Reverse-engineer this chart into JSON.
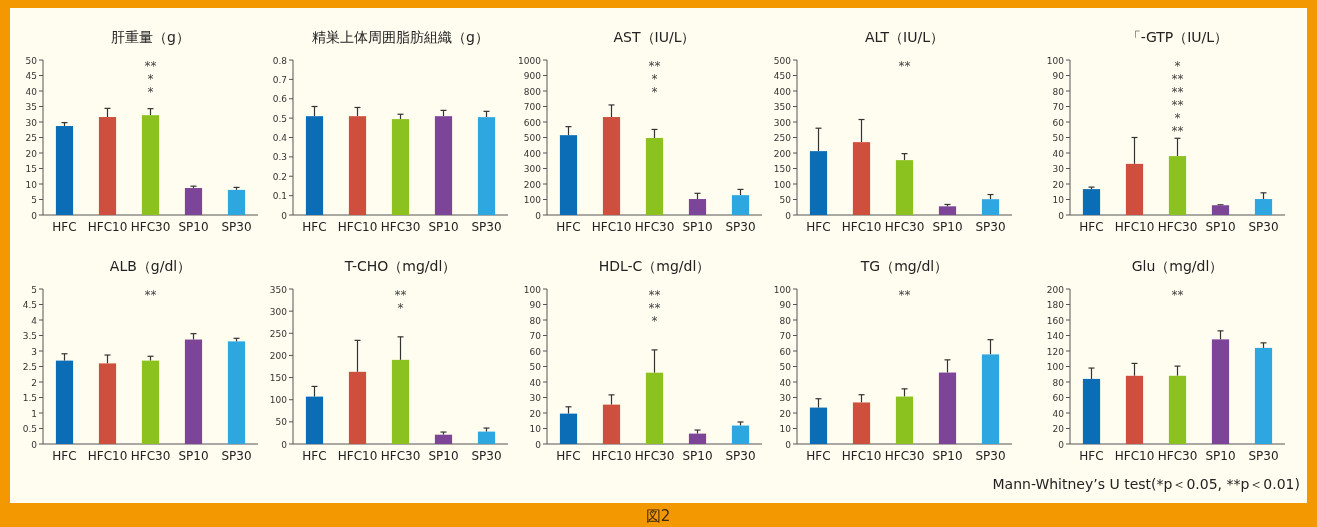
{
  "chart_data": [
    {
      "type": "bar",
      "title": "肝重量（g）",
      "categories": [
        "HFC",
        "HFC10",
        "HFC30",
        "SP10",
        "SP30"
      ],
      "values": [
        28.7,
        31.6,
        32.2,
        8.7,
        8.1
      ],
      "colors": [
        "#0a6db5",
        "#cf4f3e",
        "#8cc21f",
        "#7c4597",
        "#2ea6e0"
      ],
      "errors": [
        [
          28.7,
          29.8
        ],
        [
          31.6,
          34.4
        ],
        [
          32.2,
          34.3
        ],
        [
          8.7,
          9.3
        ],
        [
          8.1,
          8.9
        ]
      ],
      "ylim": [
        0,
        50
      ],
      "yticks": [
        0,
        5,
        10,
        15,
        20,
        25,
        30,
        35,
        40,
        45,
        50
      ],
      "annotations": [
        "**",
        "*",
        "*"
      ]
    },
    {
      "type": "bar",
      "title": "精巣上体周囲脂肪組織（g）",
      "categories": [
        "HFC",
        "HFC10",
        "HFC30",
        "SP10",
        "SP30"
      ],
      "values": [
        0.51,
        0.51,
        0.495,
        0.51,
        0.505
      ],
      "colors": [
        "#0a6db5",
        "#cf4f3e",
        "#8cc21f",
        "#7c4597",
        "#2ea6e0"
      ],
      "errors": [
        [
          0.51,
          0.56
        ],
        [
          0.51,
          0.555
        ],
        [
          0.495,
          0.52
        ],
        [
          0.51,
          0.54
        ],
        [
          0.505,
          0.535
        ]
      ],
      "ylim": [
        0,
        0.8
      ],
      "yticks": [
        0,
        0.1,
        0.2,
        0.3,
        0.4,
        0.5,
        0.6,
        0.7,
        0.8
      ]
    },
    {
      "type": "bar",
      "title": "AST（IU/L）",
      "categories": [
        "HFC",
        "HFC10",
        "HFC30",
        "SP10",
        "SP30"
      ],
      "values": [
        515,
        632,
        497,
        103,
        128
      ],
      "colors": [
        "#0a6db5",
        "#cf4f3e",
        "#8cc21f",
        "#7c4597",
        "#2ea6e0"
      ],
      "errors": [
        [
          515,
          570
        ],
        [
          632,
          710
        ],
        [
          497,
          552
        ],
        [
          103,
          140
        ],
        [
          128,
          165
        ]
      ],
      "ylim": [
        0,
        1000
      ],
      "yticks": [
        0,
        100,
        200,
        300,
        400,
        500,
        600,
        700,
        800,
        900,
        1000
      ],
      "annotations": [
        "**",
        "*",
        "*"
      ]
    },
    {
      "type": "bar",
      "title": "ALT（IU/L）",
      "categories": [
        "HFC",
        "HFC10",
        "HFC30",
        "SP10",
        "SP30"
      ],
      "values": [
        206,
        235,
        177,
        28,
        51
      ],
      "colors": [
        "#0a6db5",
        "#cf4f3e",
        "#8cc21f",
        "#7c4597",
        "#2ea6e0"
      ],
      "errors": [
        [
          206,
          280
        ],
        [
          235,
          308
        ],
        [
          177,
          198
        ],
        [
          28,
          34
        ],
        [
          51,
          66
        ]
      ],
      "ylim": [
        0,
        500
      ],
      "yticks": [
        0,
        50,
        100,
        150,
        200,
        250,
        300,
        350,
        400,
        450,
        500
      ],
      "annotations": [
        "**"
      ]
    },
    {
      "type": "bar",
      "title": "「-GTP（IU/L）",
      "categories": [
        "HFC",
        "HFC10",
        "HFC30",
        "SP10",
        "SP30"
      ],
      "values": [
        16.7,
        33,
        38,
        6.3,
        10.3
      ],
      "colors": [
        "#0a6db5",
        "#cf4f3e",
        "#8cc21f",
        "#7c4597",
        "#2ea6e0"
      ],
      "errors": [
        [
          16.7,
          18
        ],
        [
          33,
          50
        ],
        [
          38,
          49.5
        ],
        [
          6.3,
          6.6
        ],
        [
          10.3,
          14.3
        ]
      ],
      "ylim": [
        0,
        100
      ],
      "yticks": [
        0,
        10,
        20,
        30,
        40,
        50,
        60,
        70,
        80,
        90,
        100
      ],
      "annotations": [
        "*",
        "**",
        "**",
        "**",
        "*",
        "**"
      ]
    },
    {
      "type": "bar",
      "title": "ALB（g/dl）",
      "categories": [
        "HFC",
        "HFC10",
        "HFC30",
        "SP10",
        "SP30"
      ],
      "values": [
        2.69,
        2.6,
        2.69,
        3.37,
        3.31
      ],
      "colors": [
        "#0a6db5",
        "#cf4f3e",
        "#8cc21f",
        "#7c4597",
        "#2ea6e0"
      ],
      "errors": [
        [
          2.69,
          2.91
        ],
        [
          2.6,
          2.87
        ],
        [
          2.69,
          2.83
        ],
        [
          3.37,
          3.56
        ],
        [
          3.31,
          3.41
        ]
      ],
      "ylim": [
        0,
        5
      ],
      "yticks": [
        0,
        0.5,
        1,
        1.5,
        2,
        2.5,
        3,
        3.5,
        4,
        4.5,
        5
      ],
      "annotations": [
        "**"
      ]
    },
    {
      "type": "bar",
      "title": "T-CHO（mg/dl）",
      "categories": [
        "HFC",
        "HFC10",
        "HFC30",
        "SP10",
        "SP30"
      ],
      "values": [
        107,
        163,
        190,
        21,
        28
      ],
      "colors": [
        "#0a6db5",
        "#cf4f3e",
        "#8cc21f",
        "#7c4597",
        "#2ea6e0"
      ],
      "errors": [
        [
          107,
          130
        ],
        [
          163,
          234
        ],
        [
          190,
          242
        ],
        [
          21,
          27
        ],
        [
          28,
          36
        ]
      ],
      "ylim": [
        0,
        350
      ],
      "yticks": [
        0,
        50,
        100,
        150,
        200,
        250,
        300,
        350
      ],
      "annotations": [
        "**",
        "*"
      ]
    },
    {
      "type": "bar",
      "title": "HDL-C（mg/dl）",
      "categories": [
        "HFC",
        "HFC10",
        "HFC30",
        "SP10",
        "SP30"
      ],
      "values": [
        19.6,
        25.4,
        46,
        6.7,
        11.9
      ],
      "colors": [
        "#0a6db5",
        "#cf4f3e",
        "#8cc21f",
        "#7c4597",
        "#2ea6e0"
      ],
      "errors": [
        [
          19.6,
          24
        ],
        [
          25.4,
          31.7
        ],
        [
          46,
          60.7
        ],
        [
          6.7,
          9
        ],
        [
          11.9,
          14.2
        ]
      ],
      "ylim": [
        0,
        100
      ],
      "yticks": [
        0,
        10,
        20,
        30,
        40,
        50,
        60,
        70,
        80,
        90,
        100
      ],
      "annotations": [
        "**",
        "**",
        "*"
      ]
    },
    {
      "type": "bar",
      "title": "TG（mg/dl）",
      "categories": [
        "HFC",
        "HFC10",
        "HFC30",
        "SP10",
        "SP30"
      ],
      "values": [
        23.5,
        26.8,
        30.6,
        46.1,
        57.8
      ],
      "colors": [
        "#0a6db5",
        "#cf4f3e",
        "#8cc21f",
        "#7c4597",
        "#2ea6e0"
      ],
      "errors": [
        [
          23.5,
          29.2
        ],
        [
          26.8,
          31.8
        ],
        [
          30.6,
          35.6
        ],
        [
          46.1,
          54.3
        ],
        [
          57.8,
          67.3
        ]
      ],
      "ylim": [
        0,
        100
      ],
      "yticks": [
        0,
        10,
        20,
        30,
        40,
        50,
        60,
        70,
        80,
        90,
        100
      ],
      "annotations": [
        "**"
      ]
    },
    {
      "type": "bar",
      "title": "Glu（mg/dl）",
      "categories": [
        "HFC",
        "HFC10",
        "HFC30",
        "SP10",
        "SP30"
      ],
      "values": [
        84,
        88,
        88,
        135,
        124
      ],
      "colors": [
        "#0a6db5",
        "#cf4f3e",
        "#8cc21f",
        "#7c4597",
        "#2ea6e0"
      ],
      "errors": [
        [
          84,
          98
        ],
        [
          88,
          104
        ],
        [
          88,
          100.5
        ],
        [
          135,
          146
        ],
        [
          124,
          130.5
        ]
      ],
      "ylim": [
        0,
        200
      ],
      "yticks": [
        0,
        20,
        40,
        60,
        80,
        100,
        120,
        140,
        160,
        180,
        200
      ],
      "annotations": [
        "**"
      ]
    },
    {
      "type": "other",
      "title": "図2",
      "annotations": [
        "Mann-Whitney’s U test(*p＜0.05, **p＜0.01)"
      ]
    }
  ]
}
